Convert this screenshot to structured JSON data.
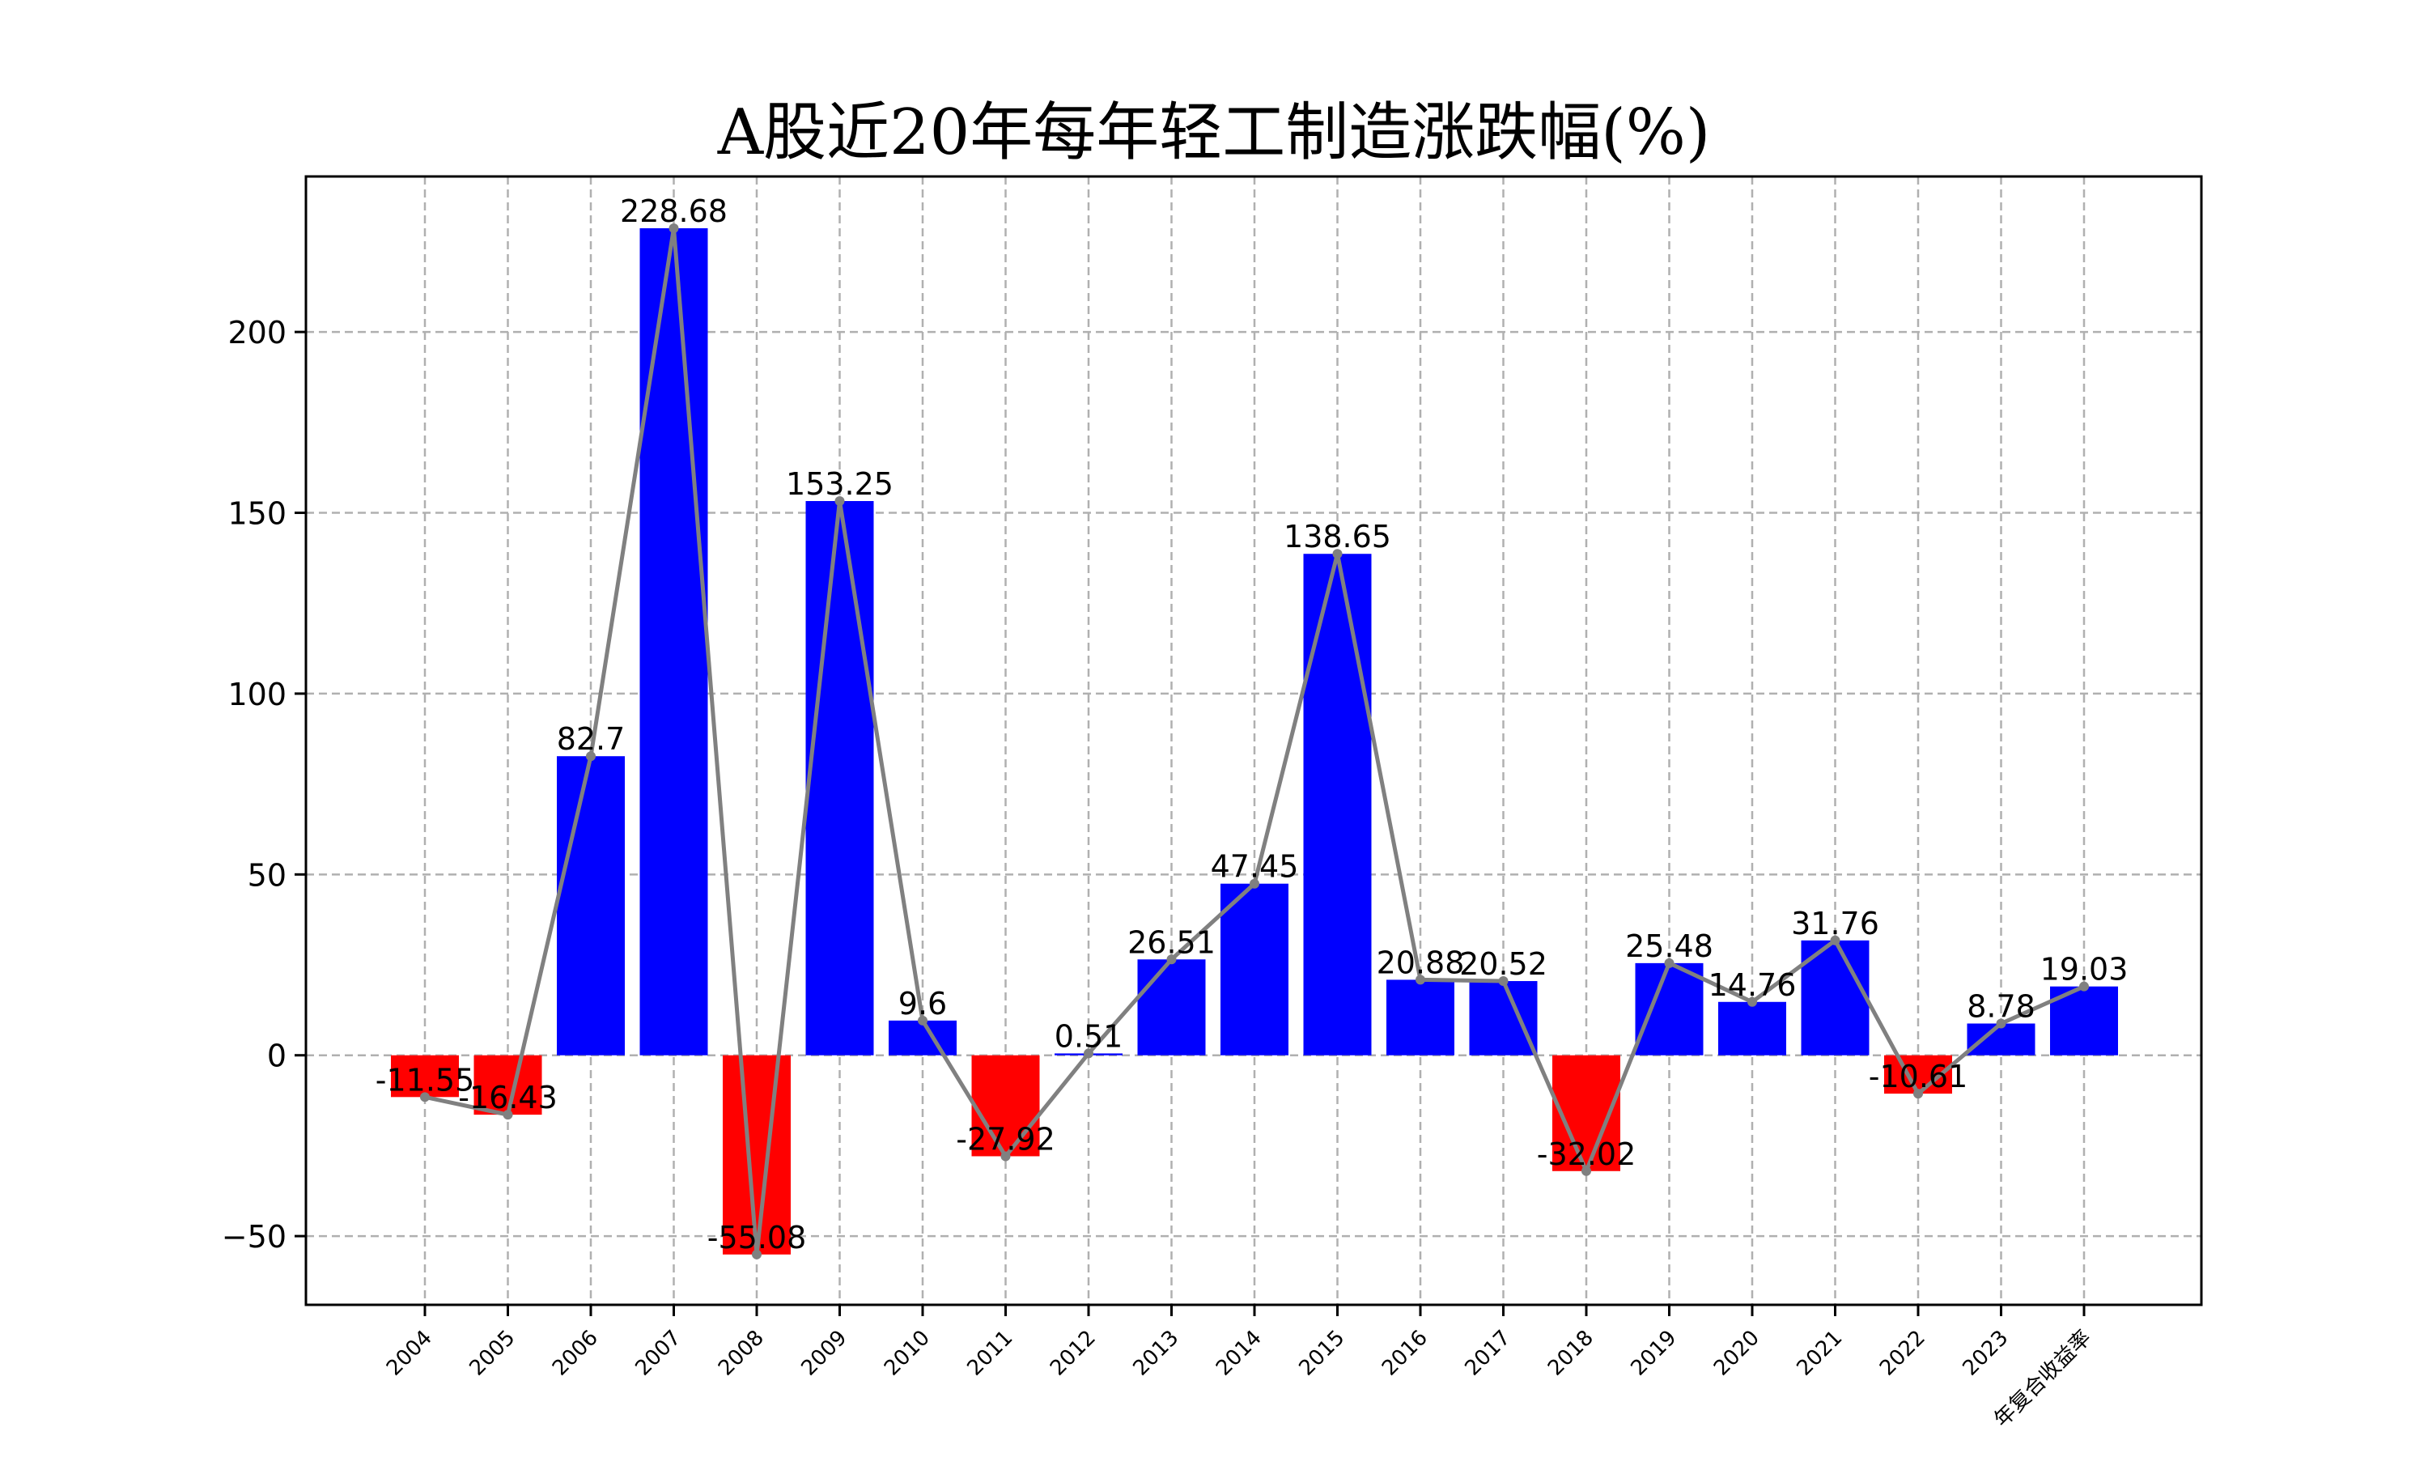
{
  "chart_data": {
    "type": "bar",
    "title": "A股近20年每年轻工制造涨跌幅(%)",
    "xlabel": "",
    "ylabel": "",
    "categories": [
      "2004",
      "2005",
      "2006",
      "2007",
      "2008",
      "2009",
      "2010",
      "2011",
      "2012",
      "2013",
      "2014",
      "2015",
      "2016",
      "2017",
      "2018",
      "2019",
      "2020",
      "2021",
      "2022",
      "2023",
      "年复合收益率"
    ],
    "values": [
      -11.55,
      -16.43,
      82.7,
      228.68,
      -55.08,
      153.25,
      9.6,
      -27.92,
      0.51,
      26.51,
      47.45,
      138.65,
      20.88,
      20.52,
      -32.02,
      25.48,
      14.76,
      31.76,
      -10.61,
      8.78,
      19.03
    ],
    "value_labels": [
      "-11.55",
      "-16.43",
      "82.7",
      "228.68",
      "-55.08",
      "153.25",
      "9.6",
      "-27.92",
      "0.51",
      "26.51",
      "47.45",
      "138.65",
      "20.88",
      "20.52",
      "-32.02",
      "25.48",
      "14.76",
      "31.76",
      "-10.61",
      "8.78",
      "19.03"
    ],
    "overlay_line": true,
    "ylim": [
      -69,
      243
    ],
    "yticks": [
      -50,
      0,
      50,
      100,
      150,
      200
    ],
    "ytick_labels": [
      "−50",
      "0",
      "50",
      "100",
      "150",
      "200"
    ],
    "grid": true,
    "colors": {
      "positive": "#0000ff",
      "negative": "#ff0000",
      "line": "#808080",
      "grid": "#b0b0b0",
      "axis": "#000000"
    }
  }
}
